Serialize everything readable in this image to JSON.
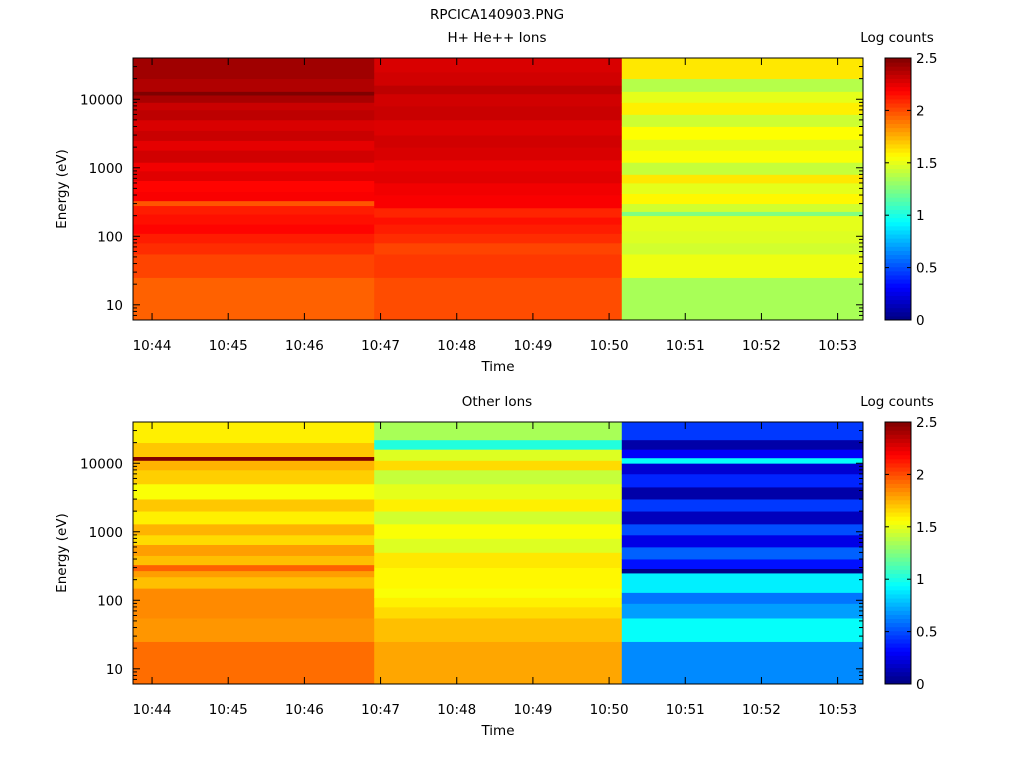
{
  "figure_title": "RPCICA140903.PNG",
  "chart_data": [
    {
      "type": "heatmap",
      "title": "H+ He++ Ions",
      "xlabel": "Time",
      "ylabel": "Energy (eV)",
      "x_ticks": [
        "10:44",
        "10:45",
        "10:46",
        "10:47",
        "10:48",
        "10:49",
        "10:50",
        "10:51",
        "10:52",
        "10:53"
      ],
      "y_ticks": [
        "10",
        "100",
        "1000",
        "10000"
      ],
      "y_scale": "log",
      "ylim": [
        6,
        40000
      ],
      "xlim": [
        "10:43:45",
        "10:53:20"
      ],
      "colorbar": {
        "label": "Log counts",
        "range": [
          0,
          2.5
        ],
        "ticks": [
          "0",
          "0.5",
          "1",
          "1.5",
          "2",
          "2.5"
        ],
        "colormap": "jet"
      },
      "columns": [
        {
          "start": "10:43:45",
          "end": "10:46:55",
          "bands": [
            [
              6,
              25,
              1.95
            ],
            [
              25,
              55,
              2.02
            ],
            [
              55,
              80,
              2.08
            ],
            [
              80,
              110,
              2.12
            ],
            [
              110,
              150,
              2.18
            ],
            [
              150,
              210,
              2.15
            ],
            [
              210,
              280,
              2.12
            ],
            [
              280,
              330,
              1.98
            ],
            [
              330,
              450,
              2.2
            ],
            [
              450,
              650,
              2.18
            ],
            [
              650,
              900,
              2.26
            ],
            [
              900,
              1200,
              2.22
            ],
            [
              1200,
              1800,
              2.3
            ],
            [
              1800,
              2500,
              2.25
            ],
            [
              2500,
              3500,
              2.32
            ],
            [
              3500,
              5000,
              2.28
            ],
            [
              5000,
              7000,
              2.35
            ],
            [
              7000,
              9000,
              2.32
            ],
            [
              9000,
              11500,
              2.4
            ],
            [
              11500,
              13000,
              2.56
            ],
            [
              13000,
              20000,
              2.38
            ],
            [
              20000,
              40000,
              2.42
            ]
          ]
        },
        {
          "start": "10:46:55",
          "end": "10:50:10",
          "bands": [
            [
              6,
              25,
              2.0
            ],
            [
              25,
              55,
              2.05
            ],
            [
              55,
              80,
              2.02
            ],
            [
              80,
              110,
              2.08
            ],
            [
              110,
              150,
              2.12
            ],
            [
              150,
              190,
              2.15
            ],
            [
              190,
              260,
              2.1
            ],
            [
              260,
              400,
              2.2
            ],
            [
              400,
              600,
              2.22
            ],
            [
              600,
              900,
              2.26
            ],
            [
              900,
              1300,
              2.24
            ],
            [
              1300,
              2000,
              2.28
            ],
            [
              2000,
              3000,
              2.3
            ],
            [
              3000,
              5000,
              2.27
            ],
            [
              5000,
              8000,
              2.32
            ],
            [
              8000,
              12000,
              2.3
            ],
            [
              12000,
              16000,
              2.35
            ],
            [
              16000,
              25000,
              2.3
            ],
            [
              25000,
              40000,
              2.28
            ]
          ]
        },
        {
          "start": "10:50:10",
          "end": "10:53:20",
          "bands": [
            [
              6,
              25,
              1.35
            ],
            [
              25,
              55,
              1.52
            ],
            [
              55,
              80,
              1.45
            ],
            [
              80,
              120,
              1.48
            ],
            [
              120,
              200,
              1.5
            ],
            [
              200,
              230,
              1.25
            ],
            [
              230,
              300,
              1.45
            ],
            [
              300,
              420,
              1.58
            ],
            [
              420,
              600,
              1.5
            ],
            [
              600,
              800,
              1.62
            ],
            [
              800,
              1200,
              1.42
            ],
            [
              1200,
              1800,
              1.55
            ],
            [
              1800,
              2600,
              1.48
            ],
            [
              2600,
              4000,
              1.56
            ],
            [
              4000,
              6000,
              1.44
            ],
            [
              6000,
              9000,
              1.6
            ],
            [
              9000,
              13000,
              1.5
            ],
            [
              13000,
              20000,
              1.38
            ],
            [
              20000,
              40000,
              1.62
            ]
          ]
        }
      ]
    },
    {
      "type": "heatmap",
      "title": "Other Ions",
      "xlabel": "Time",
      "ylabel": "Energy (eV)",
      "x_ticks": [
        "10:44",
        "10:45",
        "10:46",
        "10:47",
        "10:48",
        "10:49",
        "10:50",
        "10:51",
        "10:52",
        "10:53"
      ],
      "y_ticks": [
        "10",
        "100",
        "1000",
        "10000"
      ],
      "y_scale": "log",
      "ylim": [
        6,
        40000
      ],
      "xlim": [
        "10:43:45",
        "10:53:20"
      ],
      "colorbar": {
        "label": "Log counts",
        "range": [
          0,
          2.5
        ],
        "ticks": [
          "0",
          "0.5",
          "1",
          "1.5",
          "2",
          "2.5"
        ],
        "colormap": "jet"
      },
      "columns": [
        {
          "start": "10:43:45",
          "end": "10:46:55",
          "bands": [
            [
              6,
              25,
              1.92
            ],
            [
              25,
              55,
              1.82
            ],
            [
              55,
              150,
              1.85
            ],
            [
              150,
              220,
              1.72
            ],
            [
              220,
              270,
              1.8
            ],
            [
              270,
              330,
              1.95
            ],
            [
              330,
              450,
              1.72
            ],
            [
              450,
              650,
              1.8
            ],
            [
              650,
              900,
              1.65
            ],
            [
              900,
              1300,
              1.75
            ],
            [
              1300,
              2000,
              1.6
            ],
            [
              2000,
              3000,
              1.7
            ],
            [
              3000,
              5000,
              1.55
            ],
            [
              5000,
              8000,
              1.68
            ],
            [
              8000,
              11000,
              1.75
            ],
            [
              11000,
              12500,
              2.55
            ],
            [
              12500,
              20000,
              1.7
            ],
            [
              20000,
              40000,
              1.6
            ]
          ]
        },
        {
          "start": "10:46:55",
          "end": "10:50:10",
          "bands": [
            [
              6,
              25,
              1.78
            ],
            [
              25,
              55,
              1.72
            ],
            [
              55,
              80,
              1.65
            ],
            [
              80,
              110,
              1.6
            ],
            [
              110,
              150,
              1.55
            ],
            [
              150,
              300,
              1.58
            ],
            [
              300,
              500,
              1.62
            ],
            [
              500,
              800,
              1.48
            ],
            [
              800,
              1300,
              1.55
            ],
            [
              1300,
              2000,
              1.45
            ],
            [
              2000,
              3000,
              1.6
            ],
            [
              3000,
              5000,
              1.5
            ],
            [
              5000,
              8000,
              1.42
            ],
            [
              8000,
              11000,
              1.65
            ],
            [
              11000,
              16000,
              1.48
            ],
            [
              16000,
              22000,
              1.02
            ],
            [
              22000,
              40000,
              1.35
            ]
          ]
        },
        {
          "start": "10:50:10",
          "end": "10:53:20",
          "bands": [
            [
              6,
              25,
              0.65
            ],
            [
              25,
              55,
              0.95
            ],
            [
              55,
              90,
              0.7
            ],
            [
              90,
              130,
              0.6
            ],
            [
              130,
              250,
              0.9
            ],
            [
              250,
              290,
              0.02
            ],
            [
              290,
              400,
              0.35
            ],
            [
              400,
              600,
              0.55
            ],
            [
              600,
              900,
              0.25
            ],
            [
              900,
              1300,
              0.5
            ],
            [
              1300,
              2000,
              0.15
            ],
            [
              2000,
              3000,
              0.45
            ],
            [
              3000,
              4500,
              0.1
            ],
            [
              4500,
              7000,
              0.4
            ],
            [
              7000,
              10000,
              0.2
            ],
            [
              10000,
              12000,
              0.95
            ],
            [
              12000,
              16000,
              0.3
            ],
            [
              16000,
              22000,
              0.1
            ],
            [
              22000,
              40000,
              0.45
            ]
          ]
        }
      ]
    }
  ]
}
